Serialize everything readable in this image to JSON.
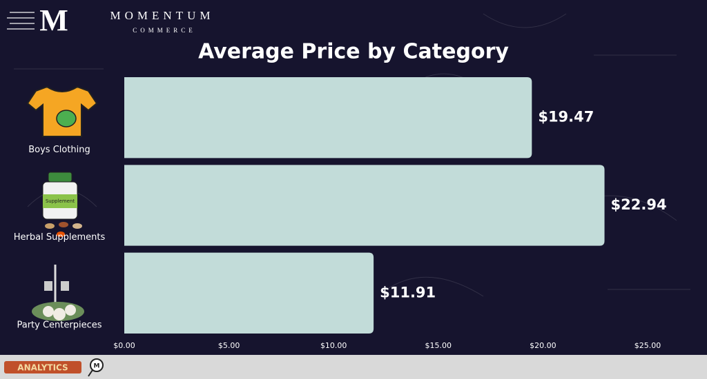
{
  "branding": {
    "logo_letter": "M",
    "name": "MOMENTUM",
    "tagline": "COMMERCE",
    "footer_badge": "ANALYTICS",
    "footer_letter": "M"
  },
  "icon_texts": {
    "supplement_label": "Supplement"
  },
  "chart_data": {
    "type": "bar",
    "orientation": "horizontal",
    "title": "Average Price by Category",
    "categories": [
      "Boys Clothing",
      "Herbal Supplements",
      "Party Centerpieces"
    ],
    "values": [
      19.47,
      22.94,
      11.91
    ],
    "value_labels": [
      "$19.47",
      "$22.94",
      "$11.91"
    ],
    "color": "#c2dcd9",
    "xlim": [
      0,
      25
    ],
    "xticks": [
      {
        "value": 0,
        "label": "$0.00"
      },
      {
        "value": 5,
        "label": "$5.00"
      },
      {
        "value": 10,
        "label": "$10.00"
      },
      {
        "value": 15,
        "label": "$15.00"
      },
      {
        "value": 20,
        "label": "$20.00"
      },
      {
        "value": 25,
        "label": "$25.00"
      }
    ],
    "grid": false
  }
}
